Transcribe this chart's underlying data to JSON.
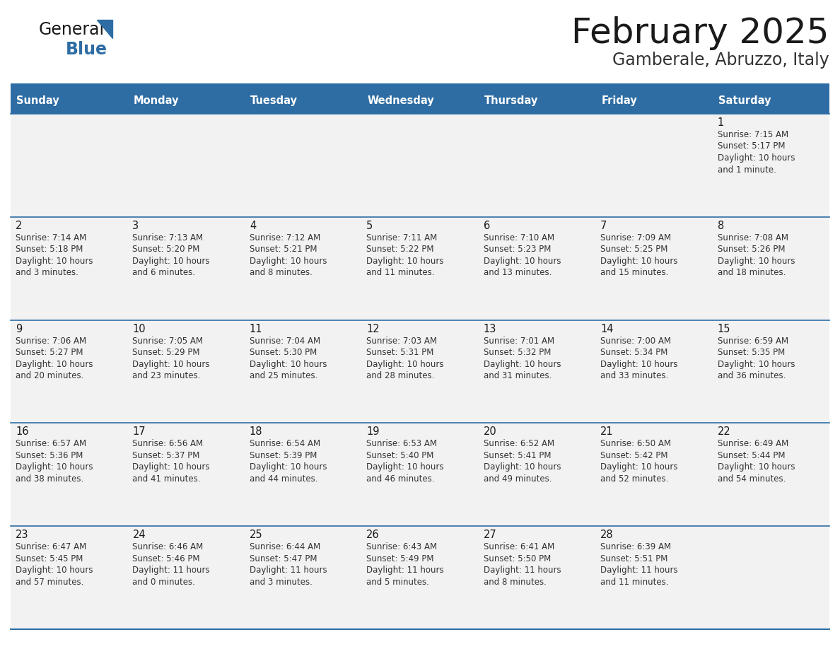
{
  "title": "February 2025",
  "subtitle": "Gamberale, Abruzzo, Italy",
  "header_bg": "#2E6DA4",
  "header_text_color": "#FFFFFF",
  "cell_bg_odd": "#F2F2F2",
  "cell_bg_even": "#FFFFFF",
  "border_color": "#2E6DA4",
  "day_headers": [
    "Sunday",
    "Monday",
    "Tuesday",
    "Wednesday",
    "Thursday",
    "Friday",
    "Saturday"
  ],
  "title_color": "#1a1a1a",
  "subtitle_color": "#333333",
  "day_number_color": "#1a1a1a",
  "cell_text_color": "#333333",
  "calendar": [
    [
      null,
      null,
      null,
      null,
      null,
      null,
      {
        "day": 1,
        "sunrise": "7:15 AM",
        "sunset": "5:17 PM",
        "daylight": "10 hours and 1 minute."
      }
    ],
    [
      {
        "day": 2,
        "sunrise": "7:14 AM",
        "sunset": "5:18 PM",
        "daylight": "10 hours and 3 minutes."
      },
      {
        "day": 3,
        "sunrise": "7:13 AM",
        "sunset": "5:20 PM",
        "daylight": "10 hours and 6 minutes."
      },
      {
        "day": 4,
        "sunrise": "7:12 AM",
        "sunset": "5:21 PM",
        "daylight": "10 hours and 8 minutes."
      },
      {
        "day": 5,
        "sunrise": "7:11 AM",
        "sunset": "5:22 PM",
        "daylight": "10 hours and 11 minutes."
      },
      {
        "day": 6,
        "sunrise": "7:10 AM",
        "sunset": "5:23 PM",
        "daylight": "10 hours and 13 minutes."
      },
      {
        "day": 7,
        "sunrise": "7:09 AM",
        "sunset": "5:25 PM",
        "daylight": "10 hours and 15 minutes."
      },
      {
        "day": 8,
        "sunrise": "7:08 AM",
        "sunset": "5:26 PM",
        "daylight": "10 hours and 18 minutes."
      }
    ],
    [
      {
        "day": 9,
        "sunrise": "7:06 AM",
        "sunset": "5:27 PM",
        "daylight": "10 hours and 20 minutes."
      },
      {
        "day": 10,
        "sunrise": "7:05 AM",
        "sunset": "5:29 PM",
        "daylight": "10 hours and 23 minutes."
      },
      {
        "day": 11,
        "sunrise": "7:04 AM",
        "sunset": "5:30 PM",
        "daylight": "10 hours and 25 minutes."
      },
      {
        "day": 12,
        "sunrise": "7:03 AM",
        "sunset": "5:31 PM",
        "daylight": "10 hours and 28 minutes."
      },
      {
        "day": 13,
        "sunrise": "7:01 AM",
        "sunset": "5:32 PM",
        "daylight": "10 hours and 31 minutes."
      },
      {
        "day": 14,
        "sunrise": "7:00 AM",
        "sunset": "5:34 PM",
        "daylight": "10 hours and 33 minutes."
      },
      {
        "day": 15,
        "sunrise": "6:59 AM",
        "sunset": "5:35 PM",
        "daylight": "10 hours and 36 minutes."
      }
    ],
    [
      {
        "day": 16,
        "sunrise": "6:57 AM",
        "sunset": "5:36 PM",
        "daylight": "10 hours and 38 minutes."
      },
      {
        "day": 17,
        "sunrise": "6:56 AM",
        "sunset": "5:37 PM",
        "daylight": "10 hours and 41 minutes."
      },
      {
        "day": 18,
        "sunrise": "6:54 AM",
        "sunset": "5:39 PM",
        "daylight": "10 hours and 44 minutes."
      },
      {
        "day": 19,
        "sunrise": "6:53 AM",
        "sunset": "5:40 PM",
        "daylight": "10 hours and 46 minutes."
      },
      {
        "day": 20,
        "sunrise": "6:52 AM",
        "sunset": "5:41 PM",
        "daylight": "10 hours and 49 minutes."
      },
      {
        "day": 21,
        "sunrise": "6:50 AM",
        "sunset": "5:42 PM",
        "daylight": "10 hours and 52 minutes."
      },
      {
        "day": 22,
        "sunrise": "6:49 AM",
        "sunset": "5:44 PM",
        "daylight": "10 hours and 54 minutes."
      }
    ],
    [
      {
        "day": 23,
        "sunrise": "6:47 AM",
        "sunset": "5:45 PM",
        "daylight": "10 hours and 57 minutes."
      },
      {
        "day": 24,
        "sunrise": "6:46 AM",
        "sunset": "5:46 PM",
        "daylight": "11 hours and 0 minutes."
      },
      {
        "day": 25,
        "sunrise": "6:44 AM",
        "sunset": "5:47 PM",
        "daylight": "11 hours and 3 minutes."
      },
      {
        "day": 26,
        "sunrise": "6:43 AM",
        "sunset": "5:49 PM",
        "daylight": "11 hours and 5 minutes."
      },
      {
        "day": 27,
        "sunrise": "6:41 AM",
        "sunset": "5:50 PM",
        "daylight": "11 hours and 8 minutes."
      },
      {
        "day": 28,
        "sunrise": "6:39 AM",
        "sunset": "5:51 PM",
        "daylight": "11 hours and 11 minutes."
      },
      null
    ]
  ]
}
